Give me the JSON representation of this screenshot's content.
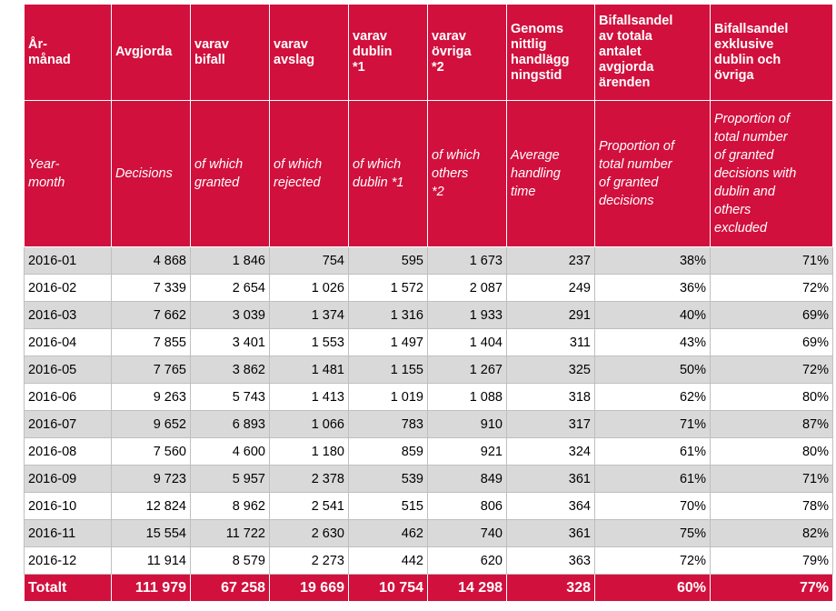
{
  "headers_sv": [
    "År-\nmånad",
    "Avgjorda",
    "varav\nbifall",
    "varav\navslag",
    "varav\ndublin\n*1",
    "varav\növriga\n*2",
    "Genoms\nnittlig\nhandlägg\nningstid",
    "Bifallsandel\nav totala\nantalet\navgjorda\närenden",
    "Bifallsandel\nexklusive\ndublin och\növriga"
  ],
  "headers_en": [
    "Year-\nmonth",
    "Decisions",
    "of which\ngranted",
    "of which\nrejected",
    "of which\ndublin *1",
    "of which\nothers\n*2",
    "Average\nhandling\ntime",
    "Proportion of\ntotal number\nof granted\ndecisions",
    "Proportion of\ntotal number\nof granted\ndecisions with\ndublin and\nothers\nexcluded"
  ],
  "rows": [
    [
      "2016-01",
      "4 868",
      "1 846",
      "754",
      "595",
      "1 673",
      "237",
      "38%",
      "71%"
    ],
    [
      "2016-02",
      "7 339",
      "2 654",
      "1 026",
      "1 572",
      "2 087",
      "249",
      "36%",
      "72%"
    ],
    [
      "2016-03",
      "7 662",
      "3 039",
      "1 374",
      "1 316",
      "1 933",
      "291",
      "40%",
      "69%"
    ],
    [
      "2016-04",
      "7 855",
      "3 401",
      "1 553",
      "1 497",
      "1 404",
      "311",
      "43%",
      "69%"
    ],
    [
      "2016-05",
      "7 765",
      "3 862",
      "1 481",
      "1 155",
      "1 267",
      "325",
      "50%",
      "72%"
    ],
    [
      "2016-06",
      "9 263",
      "5 743",
      "1 413",
      "1 019",
      "1 088",
      "318",
      "62%",
      "80%"
    ],
    [
      "2016-07",
      "9 652",
      "6 893",
      "1 066",
      "783",
      "910",
      "317",
      "71%",
      "87%"
    ],
    [
      "2016-08",
      "7 560",
      "4 600",
      "1 180",
      "859",
      "921",
      "324",
      "61%",
      "80%"
    ],
    [
      "2016-09",
      "9 723",
      "5 957",
      "2 378",
      "539",
      "849",
      "361",
      "61%",
      "71%"
    ],
    [
      "2016-10",
      "12 824",
      "8 962",
      "2 541",
      "515",
      "806",
      "364",
      "70%",
      "78%"
    ],
    [
      "2016-11",
      "15 554",
      "11 722",
      "2 630",
      "462",
      "740",
      "361",
      "75%",
      "82%"
    ],
    [
      "2016-12",
      "11 914",
      "8 579",
      "2 273",
      "442",
      "620",
      "363",
      "72%",
      "79%"
    ]
  ],
  "total": [
    "Totalt",
    "111 979",
    "67 258",
    "19 669",
    "10 754",
    "14 298",
    "328",
    "60%",
    "77%"
  ]
}
